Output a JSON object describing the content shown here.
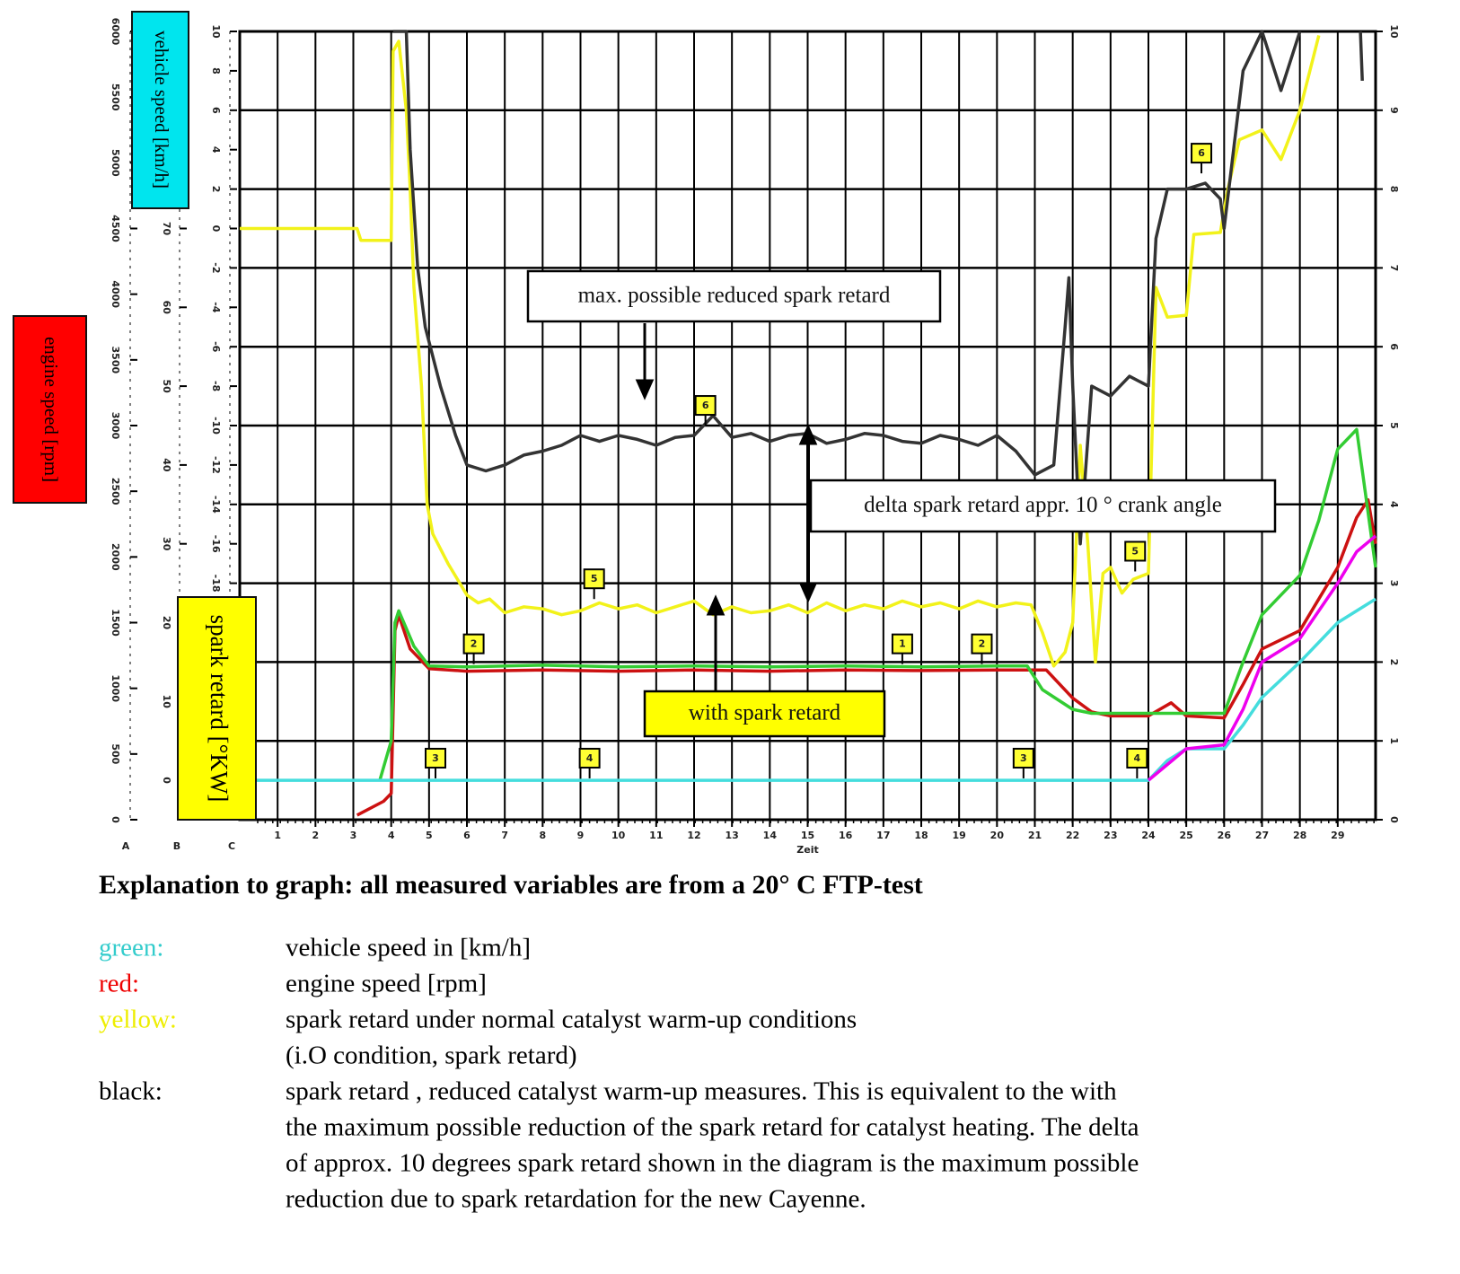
{
  "chart_data": {
    "type": "line",
    "x_label": "Zeit",
    "xlim": [
      0,
      30
    ],
    "xticks": [
      1,
      2,
      3,
      4,
      5,
      6,
      7,
      8,
      9,
      10,
      11,
      12,
      13,
      14,
      15,
      16,
      17,
      18,
      19,
      20,
      21,
      22,
      23,
      24,
      25,
      26,
      27,
      28,
      29
    ],
    "ylim": [
      -30,
      10
    ],
    "yticks": [
      -18,
      -16,
      -14,
      -12,
      -10,
      -8,
      -6,
      -4,
      -2,
      0,
      2,
      4,
      6,
      8,
      10
    ],
    "y2lim": [
      0,
      6000
    ],
    "y2ticks": [
      0,
      500,
      1000,
      1500,
      2000,
      2500,
      3000,
      3500,
      4000,
      4500,
      5000,
      5500,
      6000
    ],
    "y3lim": [
      -5,
      95
    ],
    "y3ticks": [
      0,
      10,
      20,
      30,
      40,
      50,
      60,
      70
    ],
    "y4lim": [
      0,
      10
    ],
    "y4ticks": [
      0,
      1,
      2,
      3,
      4,
      5,
      6,
      7,
      8,
      9,
      10
    ],
    "grid": true,
    "axis_letters": [
      "A",
      "B",
      "C"
    ],
    "axis_titles": [
      {
        "text": "vehicle speed [km/h]",
        "color": "#00e5ee"
      },
      {
        "text": "engine speed [rpm]",
        "color": "#ff0000"
      },
      {
        "text": "spark retard [°KW]",
        "color": "#ffff00"
      }
    ],
    "series": [
      {
        "color": "#f2f21a",
        "axis": "y",
        "x": [
          0,
          3.1,
          3.2,
          4.0,
          4.05,
          4.2,
          4.4,
          4.5,
          4.6,
          4.8,
          4.95,
          5.1,
          5.5,
          6,
          6.3,
          6.6,
          7,
          7.5,
          8,
          8.5,
          9,
          9.5,
          10,
          10.5,
          11,
          11.5,
          12,
          12.5,
          13,
          13.5,
          14,
          14.5,
          15,
          15.5,
          16,
          16.5,
          17,
          17.5,
          18,
          18.5,
          19,
          19.5,
          20,
          20.5,
          20.9,
          21.2,
          21.5,
          21.8,
          22.0,
          22.2,
          22.4,
          22.6,
          22.8,
          23.0,
          23.3,
          23.6,
          24.0,
          24.2,
          24.5,
          25.0,
          25.2,
          25.9,
          26.1,
          26.4,
          27.0,
          27.5,
          28.0,
          28.5
        ],
        "values": [
          0,
          0,
          -0.6,
          -0.6,
          9,
          9.5,
          6,
          2,
          -3,
          -8,
          -14,
          -15.5,
          -17,
          -18.6,
          -19,
          -18.8,
          -19.5,
          -19.2,
          -19.3,
          -19.6,
          -19.4,
          -19,
          -19.3,
          -19.1,
          -19.5,
          -19.2,
          -18.9,
          -19.6,
          -19.2,
          -19.5,
          -19.4,
          -19.1,
          -19.5,
          -19,
          -19.4,
          -19.1,
          -19.3,
          -18.9,
          -19.2,
          -19,
          -19.3,
          -18.9,
          -19.2,
          -19,
          -19.1,
          -20.5,
          -22.2,
          -21.5,
          -20,
          -11,
          -16,
          -22,
          -17.5,
          -17.2,
          -18.5,
          -17.8,
          -17.5,
          -3,
          -4.5,
          -4.4,
          -0.3,
          -0.2,
          2,
          4.5,
          5,
          3.5,
          6,
          9.8
        ]
      },
      {
        "color": "#333333",
        "axis": "y",
        "x": [
          4.05,
          4.4,
          4.5,
          4.7,
          4.9,
          5.3,
          5.7,
          6.0,
          6.5,
          7,
          7.5,
          8,
          8.5,
          9,
          9.5,
          10,
          10.5,
          11,
          11.5,
          12,
          12.5,
          13,
          13.5,
          14,
          14.5,
          15,
          15.5,
          16,
          16.5,
          17,
          17.5,
          18,
          18.5,
          19,
          19.5,
          20,
          20.5,
          21,
          21.5,
          21.8,
          21.9,
          22.0,
          22.2,
          22.5,
          23,
          23.5,
          24,
          24.2,
          24.5,
          25,
          25.5,
          25.9,
          26.0,
          26.5,
          27,
          27.5,
          28,
          29,
          29.6,
          29.65
        ],
        "values": [
          10,
          10,
          4,
          -2,
          -5,
          -8,
          -10.5,
          -12,
          -12.3,
          -12,
          -11.5,
          -11.3,
          -11,
          -10.5,
          -10.8,
          -10.5,
          -10.7,
          -11,
          -10.6,
          -10.5,
          -9.5,
          -10.6,
          -10.4,
          -10.8,
          -10.5,
          -10.4,
          -10.9,
          -10.7,
          -10.4,
          -10.5,
          -10.8,
          -10.9,
          -10.5,
          -10.7,
          -11,
          -10.5,
          -11.3,
          -12.5,
          -12,
          -5,
          -2.5,
          -8,
          -16,
          -8,
          -8.5,
          -7.5,
          -8,
          -0.5,
          2,
          2,
          2.3,
          1.5,
          0,
          8,
          10,
          7,
          10,
          null,
          10,
          7.5
        ]
      },
      {
        "color": "#cc1111",
        "axis": "y2",
        "x": [
          3.1,
          3.8,
          4.0,
          4.1,
          4.2,
          4.5,
          5,
          6,
          8,
          10,
          12,
          14,
          16,
          18,
          20,
          21.3,
          22,
          22.5,
          23,
          24,
          24.6,
          25,
          26,
          26.5,
          27,
          28,
          29,
          29.5,
          29.8,
          30
        ],
        "values": [
          35,
          140,
          200,
          1440,
          1557,
          1300,
          1150,
          1130,
          1140,
          1130,
          1140,
          1130,
          1140,
          1135,
          1140,
          1140,
          925,
          820,
          790,
          790,
          890,
          790,
          775,
          1030,
          1300,
          1440,
          1920,
          2300,
          2435,
          2100
        ]
      },
      {
        "color": "#33cc33",
        "axis": "y3",
        "x": [
          3.7,
          4.0,
          4.1,
          4.2,
          4.6,
          5,
          6,
          8,
          10,
          12,
          14,
          16,
          18,
          20,
          20.8,
          21.2,
          22,
          22.5,
          24,
          25,
          26,
          26.5,
          27,
          28,
          28.5,
          29,
          29.5,
          29.8,
          30
        ],
        "values": [
          0,
          5,
          20,
          21.5,
          17,
          14.5,
          14.4,
          14.6,
          14.4,
          14.5,
          14.4,
          14.5,
          14.4,
          14.5,
          14.5,
          11.5,
          9,
          8.5,
          8.5,
          8.5,
          8.5,
          15,
          21,
          26,
          33,
          42,
          44.5,
          34,
          27
        ]
      },
      {
        "color": "#44dddd",
        "axis": "y3",
        "x": [
          0,
          24,
          24.5,
          25,
          26,
          26.5,
          27,
          28,
          29,
          30
        ],
        "values": [
          0,
          0,
          2.5,
          4,
          4,
          7,
          10.5,
          15,
          20,
          23
        ]
      },
      {
        "color": "#ee00ee",
        "axis": "y3",
        "x": [
          24,
          25,
          26,
          26.5,
          27,
          28,
          29,
          29.5,
          30
        ],
        "values": [
          0,
          4,
          4.5,
          9,
          15,
          18,
          25,
          29,
          31
        ]
      }
    ],
    "markers": [
      {
        "label": "2",
        "x": 6.18,
        "y": -21.1
      },
      {
        "label": "1",
        "x": 17.5,
        "y": -21.1
      },
      {
        "label": "2",
        "x": 19.6,
        "y": -21.1
      },
      {
        "label": "3",
        "x": 5.17,
        "y": -26.9
      },
      {
        "label": "3",
        "x": 20.7,
        "y": -26.9
      },
      {
        "label": "4",
        "x": 9.24,
        "y": -26.9
      },
      {
        "label": "4",
        "x": 23.7,
        "y": -26.9
      },
      {
        "label": "5",
        "x": 9.36,
        "y": -17.8
      },
      {
        "label": "5",
        "x": 23.65,
        "y": -16.4
      },
      {
        "label": "6",
        "x": 12.3,
        "y": -9
      },
      {
        "label": "6",
        "x": 25.4,
        "y": 3.8
      }
    ],
    "annotations": [
      {
        "text": "max. possible reduced spark retard",
        "color": "#ffffff"
      },
      {
        "text": "delta spark retard appr. 10 ° crank angle",
        "color": "#ffffff"
      },
      {
        "text": "with spark retard",
        "color": "#ffff00"
      }
    ]
  },
  "explanation": {
    "heading": "Explanation to graph: all measured variables are from a 20° C FTP-test",
    "rows": [
      {
        "key": "green:",
        "color": "#33cccc",
        "lines": [
          "vehicle speed in [km/h]"
        ]
      },
      {
        "key": "red:",
        "color": "#ee0000",
        "lines": [
          "engine speed [rpm]"
        ]
      },
      {
        "key": "yellow:",
        "color": "#eeee00",
        "lines": [
          "spark retard under normal catalyst warm-up conditions",
          "(i.O condition, spark retard)"
        ]
      },
      {
        "key": "black:",
        "color": "#000000",
        "lines": [
          "spark retard , reduced catalyst warm-up measures. This is equivalent to the  with",
          "the maximum possible reduction of the spark retard for catalyst heating. The delta",
          "of approx. 10 degrees spark retard  shown in the diagram  is the maximum possible",
          "reduction due to spark retardation for the new Cayenne."
        ]
      }
    ]
  }
}
